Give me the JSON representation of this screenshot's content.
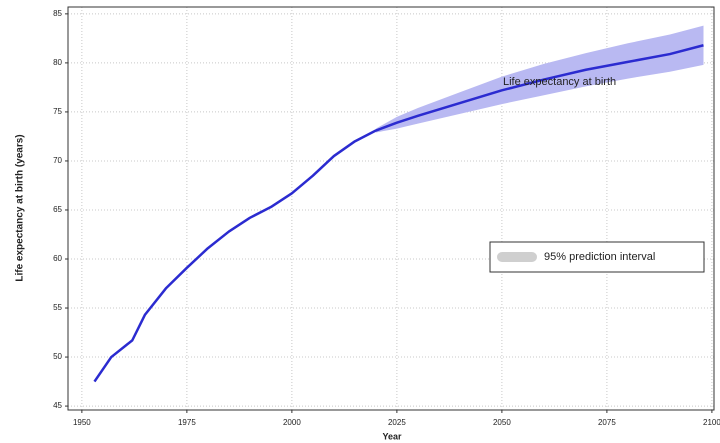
{
  "chart_data": {
    "type": "line",
    "x": [
      1953,
      1957,
      1962,
      1965,
      1970,
      1975,
      1980,
      1985,
      1990,
      1995,
      2000,
      2005,
      2010,
      2015,
      2020,
      2025,
      2030,
      2040,
      2050,
      2060,
      2070,
      2080,
      2090,
      2098
    ],
    "series": [
      {
        "name": "Life expectancy at birth",
        "color": "#2b2bd0",
        "values": [
          47.5,
          50.0,
          51.7,
          54.3,
          57.0,
          59.1,
          61.1,
          62.8,
          64.2,
          65.3,
          66.7,
          68.5,
          70.5,
          72.0,
          73.1,
          73.9,
          74.6,
          75.9,
          77.2,
          78.3,
          79.3,
          80.1,
          80.9,
          81.8
        ]
      }
    ],
    "band": {
      "name": "95% prediction interval",
      "color": "#b9b9f2",
      "legend_color": "#cfcfcf",
      "lower": [
        null,
        null,
        null,
        null,
        null,
        null,
        null,
        null,
        null,
        null,
        null,
        null,
        null,
        null,
        72.9,
        73.3,
        73.8,
        74.8,
        75.8,
        76.7,
        77.6,
        78.4,
        79.1,
        79.8
      ],
      "upper": [
        null,
        null,
        null,
        null,
        null,
        null,
        null,
        null,
        null,
        null,
        null,
        null,
        null,
        null,
        73.3,
        74.5,
        75.4,
        77.0,
        78.6,
        79.9,
        81.0,
        82.0,
        82.9,
        83.8
      ]
    },
    "x_label": "Year",
    "y_label": "Life expectancy at birth (years)",
    "xlim": [
      1946.7,
      2100.5
    ],
    "ylim": [
      44.6,
      85.7
    ],
    "xticks": [
      1950,
      1975,
      2000,
      2025,
      2050,
      2075,
      2100
    ],
    "yticks": [
      45,
      50,
      55,
      60,
      65,
      70,
      75,
      80,
      85
    ],
    "grid": true
  }
}
